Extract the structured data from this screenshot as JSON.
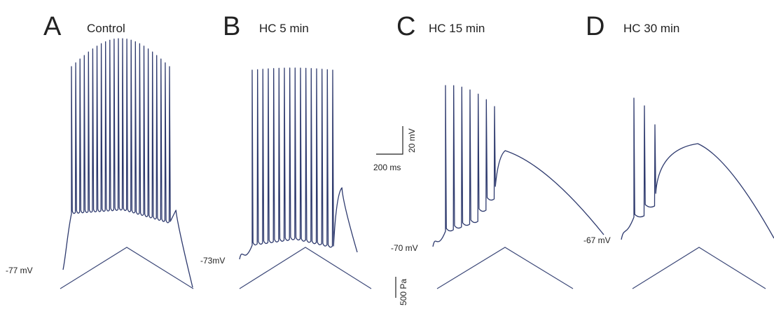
{
  "chart_data": {
    "type": "line",
    "panels": [
      {
        "letter": "A",
        "condition": "Control",
        "resting_potential_label": "-77 mV",
        "spike_count": 24
      },
      {
        "letter": "B",
        "condition": "HC 5 min",
        "resting_potential_label": "-73mV",
        "spike_count": 16
      },
      {
        "letter": "C",
        "condition": "HC 15 min",
        "resting_potential_label": "-70 mV",
        "spike_count": 7
      },
      {
        "letter": "D",
        "condition": "HC 30 min",
        "resting_potential_label": "-67 mV",
        "spike_count": 3
      }
    ],
    "scale_bars": {
      "voltage": "20 mV",
      "time": "200 ms",
      "pressure": "500 Pa"
    }
  }
}
